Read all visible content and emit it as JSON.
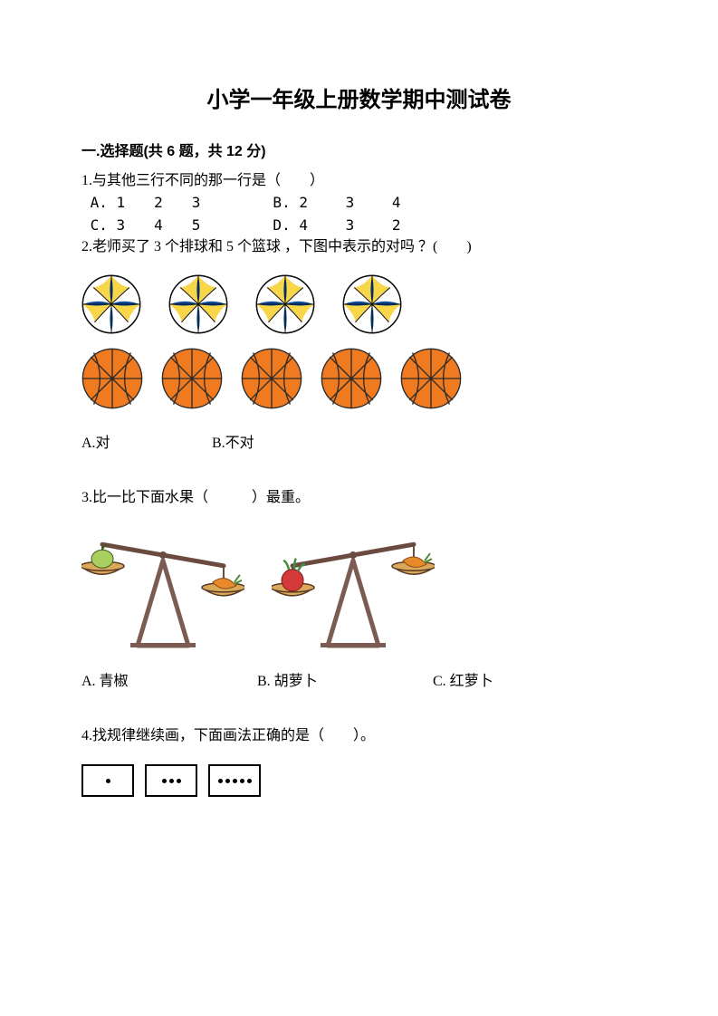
{
  "title": "小学一年级上册数学期中测试卷",
  "section1": {
    "header": "一.选择题(共 6 题，共 12 分)"
  },
  "q1": {
    "stem": "1.与其他三行不同的那一行是（　　）",
    "optA": " A. 1　　2　　3　　　　　B. 2　　 3　　 4",
    "optC": " C. 3　　4　　5　　　　　D. 4　　 3　　 2"
  },
  "q2": {
    "stem": "2.老师买了 3 个排球和 5 个篮球 ，下图中表示的对吗 ？(　　)",
    "optA_label": "A.对",
    "optB_label": "B.不对",
    "volleyball_count": 4,
    "basketball_count": 5,
    "volleyball": {
      "fill_blue": "#0b4d9b",
      "fill_yellow": "#f9d648",
      "fill_white": "#ffffff",
      "stroke": "#0a0a0a",
      "size": 66
    },
    "basketball": {
      "fill": "#f07a1f",
      "stroke": "#2b2b2b",
      "size": 68
    }
  },
  "q3": {
    "stem": "3.比一比下面水果（　　　）最重。",
    "optA": "A. 青椒",
    "optB": "B. 胡萝卜",
    "optC": "C. 红萝卜",
    "scale": {
      "arm_color": "#6b4a3f",
      "stand_color": "#7c5c52",
      "pan_color": "#d9a85b",
      "pan_stroke": "#5a3a22",
      "pepper_color": "#a8cf5f",
      "carrot_color": "#e88a2a",
      "carrot_leaf": "#4c8d3c",
      "radish_color": "#d43a3a",
      "radish_leaf": "#3f8f3f",
      "size_w": 180,
      "size_h": 140
    }
  },
  "q4": {
    "stem": "4.找规律继续画，下面画法正确的是（　　）。",
    "boxes": [
      1,
      3,
      5
    ],
    "box_border": "#000000",
    "dot_color": "#000000"
  }
}
